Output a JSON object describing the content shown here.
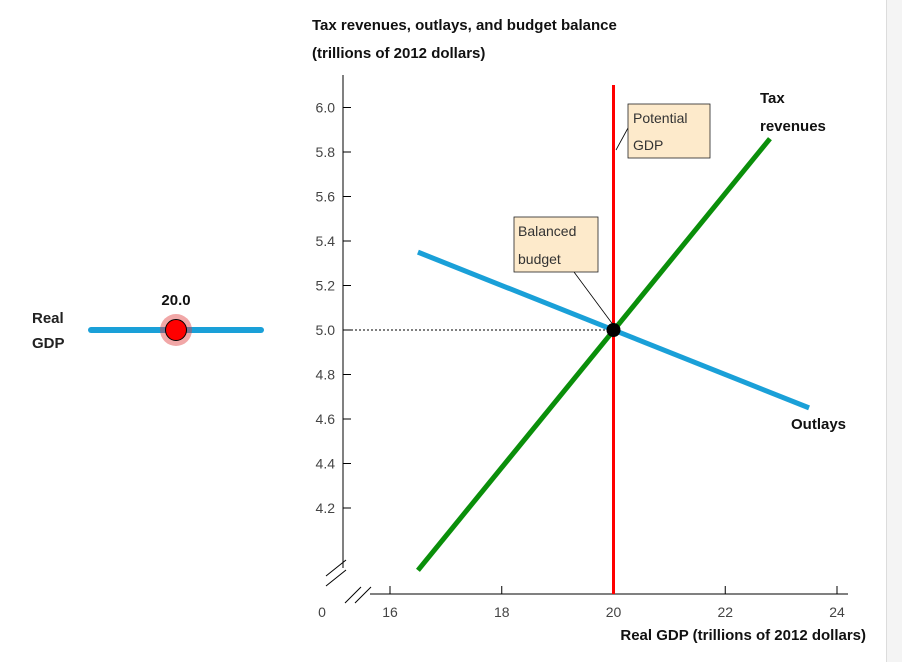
{
  "slider": {
    "label_line1": "Real",
    "label_line2": "GDP",
    "value": 20.0,
    "value_text": "20.0",
    "min": 16,
    "max": 24
  },
  "chart_data": {
    "type": "line",
    "title_line1": "Tax revenues, outlays, and budget balance",
    "title_line2": "(trillions of 2012 dollars)",
    "xlabel": "Real GDP (trillions of 2012 dollars)",
    "x_ticks": [
      16,
      18,
      20,
      22,
      24
    ],
    "x_origin_label": "0",
    "xlim": [
      16,
      24
    ],
    "y_ticks": [
      4.2,
      4.4,
      4.6,
      4.8,
      5.0,
      5.2,
      5.4,
      5.6,
      5.8,
      6.0
    ],
    "ylim": [
      4.2,
      6.0
    ],
    "axis_breaks": true,
    "series": [
      {
        "name_line1": "Tax",
        "name_line2": "revenues",
        "color": "#0a8f0a",
        "x": [
          16.5,
          22.8
        ],
        "y": [
          3.92,
          5.86
        ]
      },
      {
        "name_line1": "Outlays",
        "color": "#1aa0d8",
        "x": [
          16.5,
          23.5
        ],
        "y": [
          5.35,
          4.65
        ]
      }
    ],
    "potential_gdp": {
      "x": 20.0,
      "color": "#ff0000",
      "label_line1": "Potential",
      "label_line2": "GDP"
    },
    "balanced_budget": {
      "x": 20.0,
      "y": 5.0,
      "label_line1": "Balanced",
      "label_line2": "budget"
    }
  }
}
